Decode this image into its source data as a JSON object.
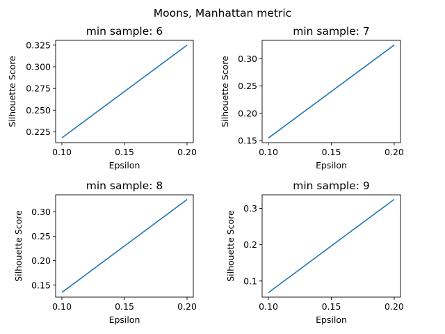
{
  "figure": {
    "title": "Moons, Manhattan metric"
  },
  "colors": {
    "series": "#1f77b4",
    "axes": "#000000",
    "background": "#ffffff"
  },
  "chart_data": [
    {
      "type": "line",
      "title": "min sample: 6",
      "xlabel": "Epsilon",
      "ylabel": "Silhouette Score",
      "grid": false,
      "xlim": [
        0.095,
        0.205
      ],
      "ylim": [
        0.2125,
        0.3305
      ],
      "xticks": [
        "0.10",
        "0.15",
        "0.20"
      ],
      "yticks": [
        "0.225",
        "0.250",
        "0.275",
        "0.300",
        "0.325"
      ],
      "series": [
        {
          "x": [
            0.1,
            0.2
          ],
          "y": [
            0.218,
            0.325
          ]
        }
      ]
    },
    {
      "type": "line",
      "title": "min sample: 7",
      "xlabel": "Epsilon",
      "ylabel": "Silhouette Score",
      "grid": false,
      "xlim": [
        0.095,
        0.205
      ],
      "ylim": [
        0.1465,
        0.3335
      ],
      "xticks": [
        "0.10",
        "0.15",
        "0.20"
      ],
      "yticks": [
        "0.15",
        "0.20",
        "0.25",
        "0.30"
      ],
      "series": [
        {
          "x": [
            0.1,
            0.2
          ],
          "y": [
            0.155,
            0.325
          ]
        }
      ]
    },
    {
      "type": "line",
      "title": "min sample: 8",
      "xlabel": "Epsilon",
      "ylabel": "Silhouette Score",
      "grid": false,
      "xlim": [
        0.095,
        0.205
      ],
      "ylim": [
        0.1255,
        0.3345
      ],
      "xticks": [
        "0.10",
        "0.15",
        "0.20"
      ],
      "yticks": [
        "0.15",
        "0.20",
        "0.25",
        "0.30"
      ],
      "series": [
        {
          "x": [
            0.1,
            0.2
          ],
          "y": [
            0.135,
            0.325
          ]
        }
      ]
    },
    {
      "type": "line",
      "title": "min sample: 9",
      "xlabel": "Epsilon",
      "ylabel": "Silhouette Score",
      "grid": false,
      "xlim": [
        0.095,
        0.205
      ],
      "ylim": [
        0.0555,
        0.3375
      ],
      "xticks": [
        "0.10",
        "0.15",
        "0.20"
      ],
      "yticks": [
        "0.1",
        "0.2",
        "0.3"
      ],
      "series": [
        {
          "x": [
            0.1,
            0.2
          ],
          "y": [
            0.068,
            0.325
          ]
        }
      ]
    }
  ]
}
